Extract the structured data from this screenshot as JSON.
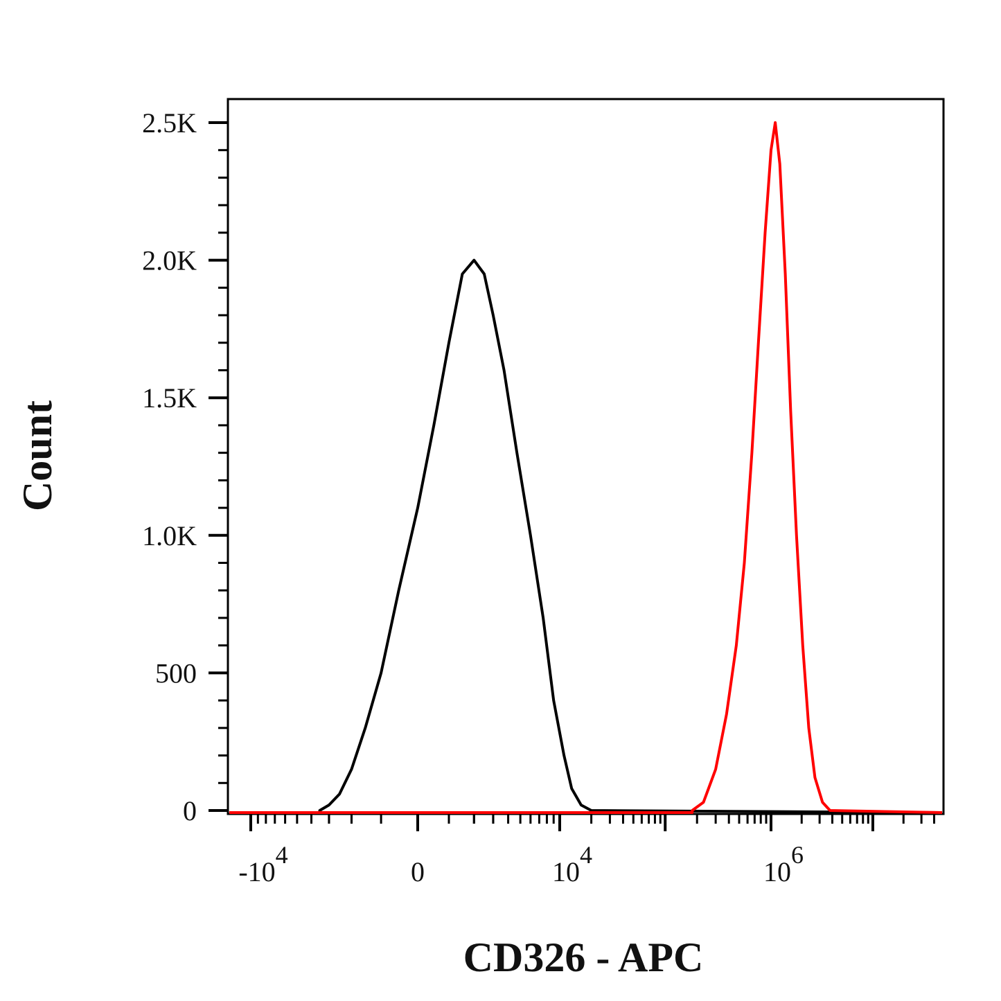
{
  "chart_data": {
    "type": "histogram",
    "xlabel": "CD326 - APC",
    "ylabel": "Count",
    "x_scale": "biexponential",
    "ylim": [
      0,
      2600
    ],
    "x_ticks": [
      {
        "value": -10000,
        "base": "-10",
        "exp": "4"
      },
      {
        "value": 0,
        "base": "0",
        "exp": ""
      },
      {
        "value": 10000,
        "base": "10",
        "exp": "4"
      },
      {
        "value": 1000000,
        "base": "10",
        "exp": "6"
      }
    ],
    "y_ticks": [
      {
        "value": 0,
        "label": "0"
      },
      {
        "value": 500,
        "label": "500"
      },
      {
        "value": 1000,
        "label": "1.0K"
      },
      {
        "value": 1500,
        "label": "1.5K"
      },
      {
        "value": 2000,
        "label": "2.0K"
      },
      {
        "value": 2500,
        "label": "2.5K"
      }
    ],
    "grid": false,
    "series": [
      {
        "color": "#000000",
        "points": [
          [
            -3500,
            0
          ],
          [
            -3000,
            20
          ],
          [
            -2500,
            60
          ],
          [
            -2000,
            150
          ],
          [
            -1500,
            300
          ],
          [
            -1000,
            500
          ],
          [
            -500,
            800
          ],
          [
            0,
            1100
          ],
          [
            500,
            1400
          ],
          [
            1000,
            1700
          ],
          [
            1500,
            1950
          ],
          [
            2000,
            2000
          ],
          [
            2500,
            1950
          ],
          [
            3000,
            1800
          ],
          [
            3700,
            1600
          ],
          [
            4700,
            1300
          ],
          [
            6000,
            1000
          ],
          [
            7500,
            700
          ],
          [
            9000,
            400
          ],
          [
            11000,
            200
          ],
          [
            13000,
            80
          ],
          [
            16000,
            20
          ],
          [
            20000,
            0
          ]
        ]
      },
      {
        "color": "#ff0000",
        "points": [
          [
            180000,
            0
          ],
          [
            230000,
            30
          ],
          [
            300000,
            150
          ],
          [
            380000,
            350
          ],
          [
            470000,
            600
          ],
          [
            560000,
            900
          ],
          [
            660000,
            1300
          ],
          [
            760000,
            1700
          ],
          [
            880000,
            2100
          ],
          [
            1000000,
            2400
          ],
          [
            1100000,
            2500
          ],
          [
            1220000,
            2350
          ],
          [
            1380000,
            1950
          ],
          [
            1560000,
            1450
          ],
          [
            1780000,
            1000
          ],
          [
            2050000,
            600
          ],
          [
            2350000,
            300
          ],
          [
            2700000,
            120
          ],
          [
            3200000,
            30
          ],
          [
            3800000,
            0
          ]
        ]
      }
    ]
  },
  "colors": {
    "axis": "#000000",
    "text": "#111111"
  }
}
